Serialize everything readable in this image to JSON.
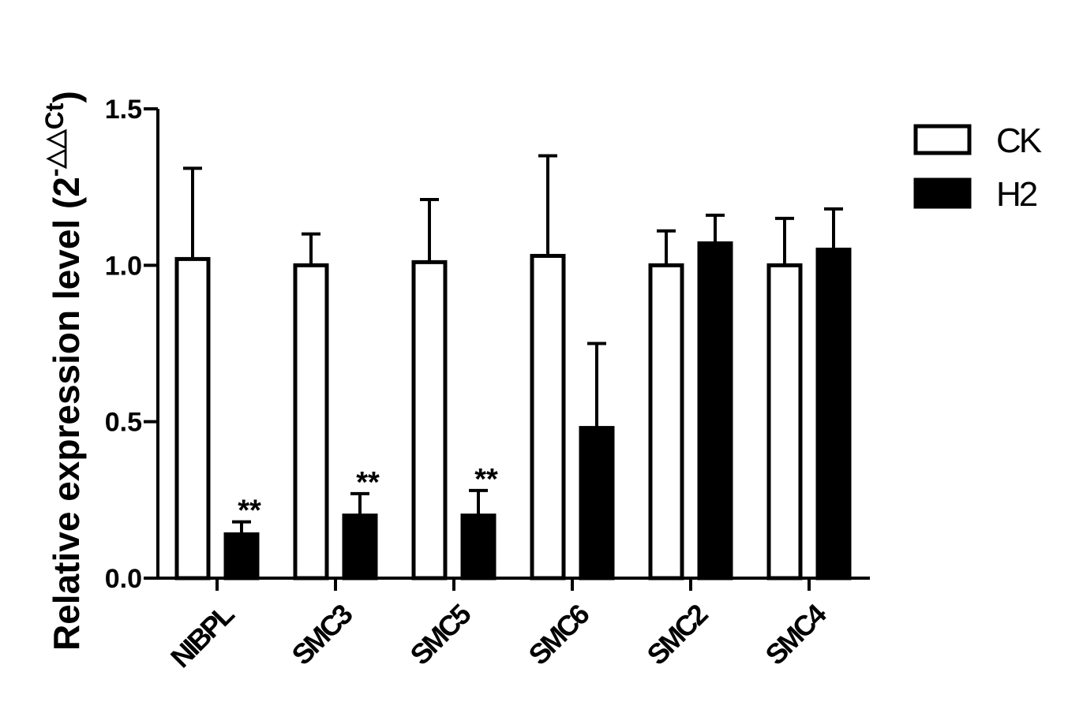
{
  "chart_data": {
    "type": "bar",
    "categories": [
      "NIBPL",
      "SMC3",
      "SMC5",
      "SMC6",
      "SMC2",
      "SMC4"
    ],
    "series": [
      {
        "name": "CK",
        "color": "#ffffff",
        "values": [
          1.02,
          1.0,
          1.01,
          1.03,
          1.0,
          1.0
        ],
        "errors": [
          0.29,
          0.1,
          0.2,
          0.32,
          0.11,
          0.15
        ],
        "significance": [
          "",
          "",
          "",
          "",
          "",
          ""
        ]
      },
      {
        "name": "H2",
        "color": "#000000",
        "values": [
          0.14,
          0.2,
          0.2,
          0.48,
          1.07,
          1.05
        ],
        "errors": [
          0.04,
          0.07,
          0.08,
          0.27,
          0.09,
          0.13
        ],
        "significance": [
          "**",
          "**",
          "**",
          "",
          "",
          ""
        ]
      }
    ],
    "ylabel_main": "Relative expression level (2",
    "ylabel_sup": "-△△Ct",
    "ylabel_close": ")",
    "yticks": [
      "0.0",
      "0.5",
      "1.0",
      "1.5"
    ],
    "ylim": [
      0,
      1.5
    ],
    "grid": false,
    "legend_position": "top-right"
  }
}
